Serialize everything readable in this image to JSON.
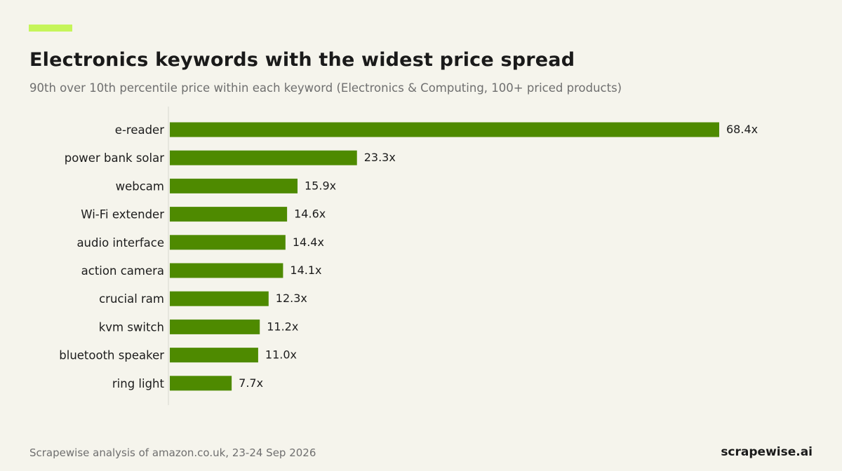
{
  "title": "Electronics keywords with the widest price spread",
  "subtitle": "90th over 10th percentile price within each keyword (Electronics & Computing, 100+ priced products)",
  "footer": {
    "source": "Scrapewise analysis of amazon.co.uk, 23-24 Sep 2026",
    "brand": "scrapewise.ai"
  },
  "colors": {
    "accent": "#c5f55a",
    "bar": "#4e8a00",
    "background": "#f5f4ec",
    "axis": "#d8d8d0"
  },
  "chart_data": {
    "type": "bar",
    "orientation": "horizontal",
    "categories": [
      "e-reader",
      "power bank solar",
      "webcam",
      "Wi-Fi extender",
      "audio interface",
      "action camera",
      "crucial ram",
      "kvm switch",
      "bluetooth speaker",
      "ring light"
    ],
    "values": [
      68.4,
      23.3,
      15.9,
      14.6,
      14.4,
      14.1,
      12.3,
      11.2,
      11.0,
      7.7
    ],
    "value_labels": [
      "68.4x",
      "23.3x",
      "15.9x",
      "14.6x",
      "14.4x",
      "14.1x",
      "12.3x",
      "11.2x",
      "11.0x",
      "7.7x"
    ],
    "title": "Electronics keywords with the widest price spread",
    "xlabel": "",
    "ylabel": "",
    "xlim": [
      0,
      68.4
    ],
    "grid": false,
    "legend": "none"
  }
}
